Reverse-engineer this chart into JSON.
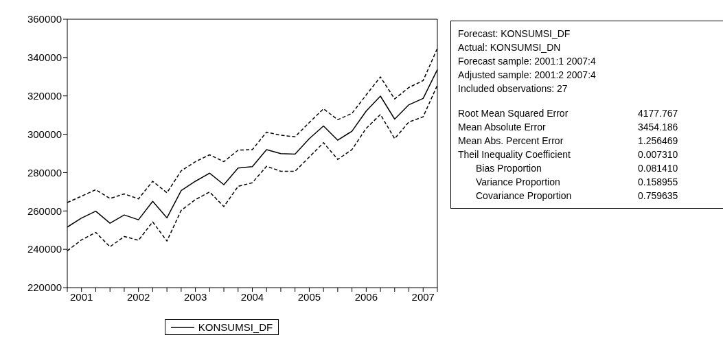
{
  "chart_data": {
    "type": "line",
    "categories": [
      null,
      "2001",
      null,
      null,
      null,
      "2002",
      null,
      null,
      null,
      "2003",
      null,
      null,
      null,
      "2004",
      null,
      null,
      null,
      "2005",
      null,
      null,
      null,
      "2006",
      null,
      null,
      null,
      "2007",
      null
    ],
    "series": [
      {
        "name": "KONSUMSI_DF",
        "color": "#000000",
        "line_style": "solid",
        "values": [
          251600,
          256300,
          259900,
          253600,
          257900,
          255400,
          265000,
          256400,
          270600,
          275500,
          279700,
          273700,
          282400,
          283100,
          292000,
          289900,
          289600,
          297700,
          304300,
          296900,
          301600,
          312100,
          319900,
          307900,
          315400,
          318700,
          333700
        ]
      },
      {
        "color": "#000000",
        "line_style": "dashed",
        "values": [
          264400,
          267700,
          271100,
          266500,
          268900,
          266300,
          275500,
          269500,
          280900,
          285700,
          289300,
          285700,
          291700,
          292000,
          301100,
          299500,
          298700,
          306100,
          313300,
          307600,
          310900,
          320500,
          329900,
          318400,
          324400,
          328000,
          344800
        ]
      },
      {
        "color": "#000000",
        "line_style": "dashed",
        "values": [
          239200,
          244900,
          248800,
          241300,
          246700,
          244700,
          254300,
          244300,
          260300,
          265900,
          269900,
          262300,
          272800,
          274700,
          283300,
          280700,
          280700,
          288100,
          295600,
          286900,
          292000,
          303100,
          310300,
          297700,
          306400,
          309100,
          325600
        ]
      }
    ],
    "ylim": [
      220000,
      360000
    ],
    "yticks": [
      220000,
      240000,
      260000,
      280000,
      300000,
      320000,
      340000,
      360000
    ],
    "grid": false,
    "legend": "bottom",
    "marker": "none",
    "annotations": [
      "Forecast: KONSUMSI_DF",
      "Actual: KONSUMSI_DN",
      "Forecast sample: 2001:1 2007:4",
      "Adjusted sample: 2001:2 2007:4",
      "Included observations: 27",
      "Root Mean Squared Error",
      "4177.767",
      "Mean Absolute Error",
      "3454.186",
      "Mean Abs. Percent Error",
      "1.256469",
      "Theil Inequality Coefficient",
      "0.007310",
      "Bias Proportion",
      "0.081410",
      "Variance Proportion",
      "0.158955",
      "Covariance Proportion",
      "0.759635"
    ]
  }
}
